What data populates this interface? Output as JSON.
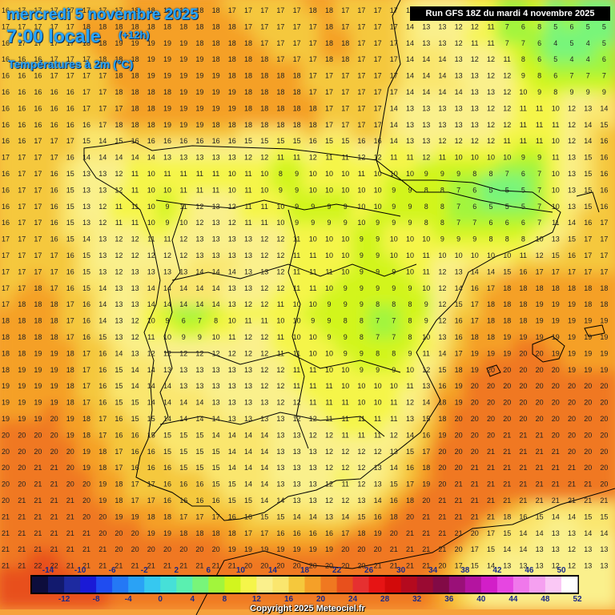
{
  "header": {
    "date": "mercredi 5 novembre 2025",
    "time": "7:00 locale",
    "offset": "(+12h)",
    "parameter": "Températures à 2m (°C)",
    "run": "Run GFS 18Z du mardi 4 novembre 2025"
  },
  "legend": {
    "labels_top": [
      "-14",
      "-10",
      "-6",
      "-2",
      "2",
      "6",
      "10",
      "14",
      "18",
      "22",
      "26",
      "30",
      "34",
      "38",
      "42",
      "46",
      "50"
    ],
    "labels_bottom": [
      "-12",
      "-8",
      "-4",
      "0",
      "4",
      "8",
      "12",
      "16",
      "20",
      "24",
      "28",
      "32",
      "36",
      "40",
      "44",
      "48",
      "52"
    ],
    "colors": [
      "#0d0d3c",
      "#121a6e",
      "#1d2aa0",
      "#1a1ad6",
      "#1f4cf0",
      "#2478f5",
      "#2aa2f5",
      "#36c8f0",
      "#46e0d8",
      "#5af0b0",
      "#78f57a",
      "#a2f53c",
      "#d2f51e",
      "#f5f54a",
      "#faf08c",
      "#fae66e",
      "#f5c83c",
      "#f5a028",
      "#f07820",
      "#e8501c",
      "#e63030",
      "#e61414",
      "#d20a0a",
      "#b40a1e",
      "#9a0a32",
      "#820a46",
      "#9a1078",
      "#b414a0",
      "#d21ec8",
      "#e646e1",
      "#f078eb",
      "#f5a0f0",
      "#fac8f5",
      "#ffffff"
    ],
    "min_value": -14,
    "step": 2
  },
  "map_data": {
    "rows": 37,
    "cols": 38,
    "temperatures": [
      [
        16,
        17,
        17,
        17,
        17,
        17,
        17,
        17,
        18,
        18,
        18,
        18,
        18,
        18,
        17,
        17,
        17,
        17,
        17,
        18,
        18,
        17,
        17,
        17,
        17,
        14,
        13,
        13,
        12,
        11,
        10,
        7,
        6,
        8,
        5,
        6,
        4,
        5
      ],
      [
        17,
        17,
        17,
        17,
        17,
        18,
        18,
        18,
        18,
        18,
        18,
        18,
        18,
        18,
        18,
        17,
        17,
        17,
        17,
        17,
        18,
        17,
        17,
        17,
        17,
        14,
        13,
        13,
        12,
        12,
        11,
        7,
        6,
        8,
        5,
        6,
        5,
        5
      ],
      [
        16,
        17,
        17,
        17,
        17,
        18,
        18,
        19,
        19,
        19,
        19,
        19,
        18,
        18,
        18,
        18,
        17,
        17,
        17,
        17,
        18,
        18,
        17,
        17,
        17,
        14,
        13,
        13,
        12,
        11,
        11,
        7,
        7,
        6,
        4,
        5,
        4,
        5
      ],
      [
        16,
        16,
        16,
        17,
        17,
        17,
        18,
        18,
        18,
        19,
        19,
        19,
        19,
        18,
        18,
        18,
        18,
        17,
        17,
        17,
        18,
        18,
        17,
        17,
        17,
        14,
        14,
        14,
        13,
        12,
        12,
        11,
        8,
        6,
        5,
        4,
        4,
        6
      ],
      [
        16,
        16,
        16,
        17,
        17,
        17,
        17,
        18,
        18,
        19,
        19,
        19,
        19,
        19,
        18,
        18,
        18,
        18,
        18,
        17,
        17,
        17,
        17,
        17,
        17,
        14,
        14,
        14,
        13,
        13,
        12,
        12,
        9,
        8,
        6,
        7,
        7,
        7
      ],
      [
        16,
        16,
        16,
        16,
        16,
        17,
        17,
        18,
        18,
        18,
        18,
        19,
        19,
        19,
        19,
        18,
        18,
        18,
        18,
        17,
        17,
        17,
        17,
        17,
        17,
        14,
        14,
        14,
        14,
        13,
        13,
        12,
        10,
        9,
        8,
        9,
        9,
        9
      ],
      [
        16,
        16,
        16,
        16,
        16,
        17,
        17,
        17,
        18,
        18,
        19,
        19,
        19,
        19,
        19,
        18,
        18,
        18,
        18,
        18,
        17,
        17,
        17,
        17,
        14,
        13,
        13,
        13,
        13,
        13,
        12,
        12,
        11,
        11,
        10,
        12,
        13,
        14
      ],
      [
        16,
        16,
        16,
        16,
        16,
        16,
        17,
        18,
        18,
        18,
        19,
        19,
        19,
        18,
        18,
        18,
        18,
        18,
        18,
        18,
        17,
        17,
        17,
        17,
        14,
        13,
        13,
        13,
        13,
        13,
        12,
        12,
        11,
        11,
        11,
        12,
        14,
        15
      ],
      [
        16,
        16,
        17,
        17,
        17,
        15,
        14,
        15,
        16,
        16,
        16,
        16,
        16,
        16,
        16,
        15,
        15,
        15,
        15,
        16,
        15,
        15,
        16,
        16,
        14,
        13,
        13,
        12,
        12,
        12,
        12,
        11,
        11,
        11,
        10,
        12,
        14,
        16
      ],
      [
        17,
        17,
        17,
        17,
        16,
        14,
        14,
        14,
        14,
        14,
        13,
        13,
        13,
        13,
        13,
        12,
        12,
        11,
        11,
        12,
        11,
        11,
        12,
        12,
        11,
        11,
        12,
        11,
        10,
        10,
        10,
        10,
        9,
        9,
        11,
        13,
        15,
        16
      ],
      [
        16,
        17,
        17,
        16,
        15,
        13,
        13,
        12,
        11,
        10,
        11,
        11,
        11,
        11,
        10,
        11,
        10,
        8,
        9,
        10,
        10,
        10,
        11,
        10,
        10,
        10,
        9,
        9,
        9,
        8,
        8,
        7,
        6,
        7,
        10,
        13,
        15,
        16
      ],
      [
        16,
        17,
        17,
        16,
        15,
        13,
        13,
        12,
        11,
        10,
        10,
        11,
        11,
        11,
        10,
        11,
        10,
        9,
        9,
        10,
        10,
        10,
        10,
        10,
        9,
        9,
        8,
        8,
        7,
        6,
        5,
        5,
        5,
        7,
        10,
        13,
        15,
        16
      ],
      [
        16,
        17,
        17,
        16,
        15,
        13,
        12,
        11,
        11,
        10,
        9,
        11,
        12,
        13,
        12,
        11,
        11,
        10,
        9,
        9,
        9,
        9,
        10,
        10,
        9,
        9,
        8,
        8,
        7,
        6,
        5,
        5,
        5,
        7,
        10,
        13,
        15,
        16
      ],
      [
        16,
        17,
        17,
        16,
        15,
        13,
        12,
        11,
        11,
        10,
        9,
        10,
        12,
        13,
        12,
        11,
        11,
        10,
        9,
        9,
        9,
        9,
        10,
        9,
        9,
        9,
        8,
        8,
        7,
        7,
        6,
        6,
        6,
        7,
        11,
        14,
        16,
        17
      ],
      [
        17,
        17,
        17,
        16,
        15,
        14,
        13,
        12,
        12,
        11,
        11,
        12,
        13,
        13,
        13,
        13,
        12,
        12,
        11,
        10,
        10,
        10,
        9,
        9,
        10,
        10,
        10,
        9,
        9,
        9,
        8,
        8,
        8,
        10,
        13,
        15,
        17,
        17
      ],
      [
        17,
        17,
        17,
        17,
        16,
        15,
        13,
        12,
        12,
        12,
        12,
        12,
        13,
        13,
        13,
        13,
        12,
        12,
        11,
        11,
        10,
        10,
        9,
        9,
        10,
        10,
        11,
        10,
        10,
        10,
        10,
        10,
        11,
        12,
        15,
        16,
        17,
        17
      ],
      [
        17,
        17,
        17,
        17,
        16,
        15,
        13,
        12,
        13,
        13,
        13,
        13,
        14,
        14,
        14,
        13,
        13,
        12,
        11,
        11,
        11,
        10,
        9,
        9,
        9,
        10,
        11,
        12,
        13,
        14,
        14,
        15,
        16,
        17,
        17,
        17,
        17,
        17
      ],
      [
        17,
        17,
        18,
        17,
        16,
        15,
        14,
        13,
        13,
        14,
        14,
        14,
        14,
        14,
        13,
        13,
        12,
        12,
        11,
        11,
        10,
        9,
        9,
        9,
        9,
        9,
        10,
        12,
        14,
        16,
        17,
        18,
        18,
        18,
        18,
        18,
        18,
        18
      ],
      [
        17,
        18,
        18,
        18,
        17,
        16,
        14,
        13,
        13,
        14,
        14,
        14,
        14,
        14,
        13,
        12,
        12,
        11,
        10,
        10,
        9,
        9,
        9,
        8,
        8,
        8,
        9,
        12,
        15,
        17,
        18,
        18,
        18,
        19,
        19,
        19,
        18,
        18
      ],
      [
        18,
        18,
        18,
        18,
        17,
        16,
        14,
        13,
        12,
        10,
        9,
        6,
        7,
        8,
        10,
        11,
        11,
        10,
        10,
        9,
        9,
        8,
        8,
        7,
        7,
        8,
        9,
        12,
        16,
        17,
        18,
        18,
        18,
        19,
        19,
        19,
        19,
        19
      ],
      [
        18,
        18,
        18,
        18,
        17,
        16,
        15,
        13,
        12,
        11,
        10,
        9,
        9,
        10,
        11,
        12,
        12,
        11,
        10,
        10,
        9,
        9,
        8,
        7,
        7,
        8,
        10,
        13,
        16,
        18,
        18,
        19,
        19,
        19,
        19,
        19,
        19,
        19
      ],
      [
        18,
        18,
        19,
        19,
        18,
        17,
        16,
        14,
        13,
        12,
        12,
        12,
        12,
        12,
        12,
        12,
        12,
        11,
        11,
        10,
        10,
        9,
        9,
        8,
        8,
        9,
        11,
        14,
        17,
        19,
        19,
        19,
        20,
        20,
        19,
        19,
        19,
        19
      ],
      [
        18,
        19,
        19,
        19,
        18,
        17,
        16,
        15,
        14,
        14,
        13,
        13,
        13,
        13,
        13,
        13,
        12,
        12,
        11,
        11,
        10,
        10,
        9,
        9,
        9,
        10,
        12,
        15,
        18,
        19,
        20,
        20,
        20,
        20,
        20,
        19,
        19,
        19
      ],
      [
        19,
        19,
        19,
        19,
        18,
        17,
        16,
        15,
        14,
        14,
        14,
        13,
        13,
        13,
        13,
        13,
        12,
        12,
        11,
        11,
        11,
        10,
        10,
        10,
        10,
        11,
        13,
        16,
        19,
        20,
        20,
        20,
        20,
        20,
        20,
        20,
        20,
        20
      ],
      [
        19,
        19,
        19,
        19,
        18,
        17,
        16,
        15,
        15,
        14,
        14,
        14,
        14,
        13,
        13,
        13,
        13,
        12,
        12,
        11,
        11,
        11,
        10,
        10,
        11,
        12,
        14,
        18,
        19,
        20,
        20,
        20,
        20,
        20,
        20,
        20,
        20,
        20
      ],
      [
        19,
        19,
        19,
        20,
        19,
        18,
        17,
        16,
        15,
        15,
        14,
        14,
        14,
        14,
        13,
        13,
        13,
        13,
        12,
        12,
        11,
        11,
        11,
        11,
        11,
        13,
        15,
        18,
        20,
        20,
        20,
        20,
        20,
        20,
        20,
        20,
        20,
        20
      ],
      [
        20,
        20,
        20,
        20,
        19,
        18,
        17,
        16,
        16,
        15,
        15,
        15,
        15,
        14,
        14,
        14,
        14,
        13,
        13,
        12,
        12,
        11,
        11,
        11,
        12,
        14,
        16,
        19,
        20,
        20,
        20,
        21,
        21,
        21,
        20,
        20,
        20,
        20
      ],
      [
        20,
        20,
        20,
        20,
        20,
        19,
        18,
        17,
        16,
        16,
        15,
        15,
        15,
        15,
        14,
        14,
        14,
        13,
        13,
        13,
        12,
        12,
        12,
        12,
        13,
        15,
        17,
        20,
        20,
        20,
        21,
        21,
        21,
        21,
        21,
        20,
        20,
        20
      ],
      [
        20,
        20,
        21,
        21,
        20,
        19,
        18,
        17,
        16,
        16,
        16,
        15,
        15,
        15,
        14,
        14,
        14,
        13,
        13,
        13,
        12,
        12,
        12,
        13,
        14,
        16,
        18,
        20,
        20,
        21,
        21,
        21,
        21,
        21,
        21,
        21,
        20,
        20
      ],
      [
        20,
        20,
        21,
        21,
        20,
        20,
        19,
        18,
        17,
        17,
        16,
        16,
        16,
        15,
        15,
        14,
        14,
        13,
        13,
        13,
        12,
        11,
        12,
        13,
        15,
        17,
        19,
        20,
        21,
        21,
        21,
        21,
        21,
        21,
        21,
        21,
        21,
        20
      ],
      [
        20,
        21,
        21,
        21,
        21,
        20,
        19,
        18,
        17,
        17,
        16,
        16,
        16,
        16,
        15,
        15,
        14,
        14,
        13,
        13,
        12,
        12,
        13,
        14,
        16,
        18,
        20,
        21,
        21,
        21,
        21,
        21,
        21,
        21,
        21,
        21,
        21,
        21
      ],
      [
        21,
        21,
        21,
        21,
        21,
        20,
        20,
        19,
        19,
        18,
        18,
        17,
        17,
        17,
        16,
        16,
        15,
        15,
        14,
        14,
        13,
        14,
        15,
        16,
        18,
        20,
        21,
        21,
        21,
        21,
        21,
        18,
        16,
        15,
        14,
        14,
        15,
        15
      ],
      [
        21,
        21,
        21,
        21,
        21,
        21,
        20,
        20,
        20,
        19,
        19,
        18,
        18,
        18,
        18,
        17,
        17,
        16,
        16,
        16,
        16,
        17,
        18,
        19,
        20,
        21,
        21,
        21,
        21,
        20,
        17,
        15,
        14,
        14,
        13,
        13,
        14,
        14
      ],
      [
        21,
        21,
        21,
        21,
        21,
        21,
        21,
        20,
        20,
        20,
        20,
        20,
        20,
        20,
        19,
        19,
        19,
        19,
        19,
        19,
        19,
        20,
        20,
        20,
        21,
        21,
        21,
        21,
        20,
        17,
        15,
        14,
        14,
        13,
        13,
        12,
        13,
        13
      ],
      [
        21,
        21,
        22,
        22,
        21,
        21,
        21,
        21,
        21,
        21,
        21,
        21,
        21,
        21,
        21,
        20,
        20,
        20,
        20,
        20,
        20,
        20,
        20,
        21,
        21,
        21,
        21,
        20,
        17,
        15,
        14,
        13,
        13,
        13,
        12,
        12,
        13,
        13
      ],
      [
        22,
        22,
        22,
        22,
        22,
        21,
        21,
        21,
        21,
        21,
        21,
        21,
        21,
        21,
        21,
        21,
        21,
        21,
        21,
        21,
        21,
        21,
        21,
        21,
        21,
        21,
        21,
        19,
        16,
        14,
        13,
        13,
        13,
        13,
        12,
        12,
        12,
        12
      ],
      [
        22,
        22,
        22,
        22,
        22,
        22,
        22,
        21,
        21,
        21,
        21,
        21,
        21,
        21,
        21,
        21,
        21,
        21,
        21,
        21,
        21,
        21,
        21,
        21,
        21,
        21,
        21,
        18,
        16,
        14,
        13,
        13,
        13,
        12,
        12,
        12,
        12,
        12
      ]
    ]
  },
  "copyright": "Copyright 2025 Meteociel.fr"
}
